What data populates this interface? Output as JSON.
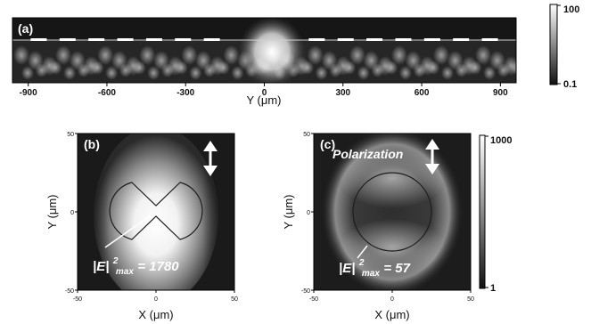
{
  "chart_data": [
    {
      "type": "heatmap",
      "panel_label": "(a)",
      "xlabel": "Y (μm)",
      "xlim": [
        -960,
        960
      ],
      "xticks": [
        "-900",
        "-600",
        "-300",
        "0",
        "300",
        "600",
        "900"
      ],
      "xtick_values": [
        -900,
        -600,
        -300,
        0,
        300,
        600,
        900
      ],
      "colorbar": {
        "max_label": "100",
        "min_label": "0.1",
        "scale": "log"
      },
      "notches_y_um": [
        -860,
        -750,
        -640,
        -530,
        -420,
        -310,
        -200,
        200,
        310,
        420,
        530,
        640,
        750,
        860
      ]
    },
    {
      "type": "heatmap",
      "panel_label": "(b)",
      "xlabel": "X (μm)",
      "ylabel": "Y (μm)",
      "xlim": [
        -50,
        50
      ],
      "ylim": [
        -50,
        50
      ],
      "xticks": [
        "-50",
        "0",
        "50"
      ],
      "yticks": [
        "50",
        "0",
        "-50"
      ],
      "annotation_main": "|E|",
      "annotation_sup": "2",
      "annotation_sub": "max",
      "annotation_value": " = 1780",
      "shape": "bowtie",
      "polarization": "vertical"
    },
    {
      "type": "heatmap",
      "panel_label": "(c)",
      "xlabel": "X (μm)",
      "ylabel": "Y (μm)",
      "xlim": [
        -50,
        50
      ],
      "ylim": [
        -50,
        50
      ],
      "xticks": [
        "-50",
        "0",
        "50"
      ],
      "yticks": [
        "50",
        "0",
        "-50"
      ],
      "annotation_main": "|E|",
      "annotation_sup": "2",
      "annotation_sub": "max",
      "annotation_value": " = 57",
      "polarization_label": "Polarization",
      "shape": "disk",
      "polarization": "vertical"
    }
  ],
  "colorbar_bottom": {
    "max_label": "1000",
    "min_label": "1",
    "scale": "log"
  },
  "colors": {
    "background": "#ffffff",
    "map_dark": "#141414",
    "map_bright": "#ffffff"
  }
}
